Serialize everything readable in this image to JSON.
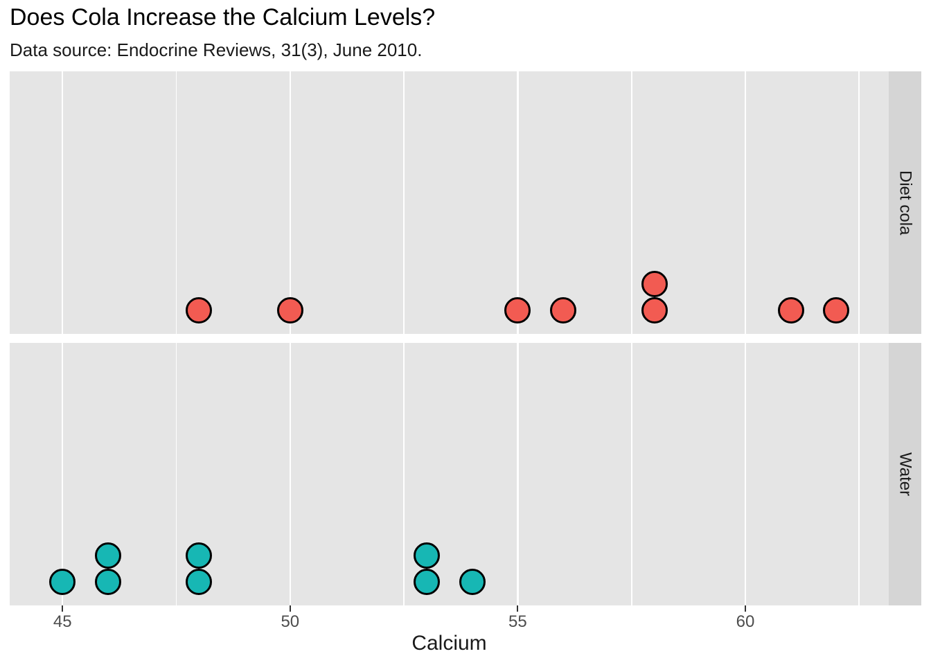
{
  "chart_data": {
    "type": "dotplot",
    "title": "Does Cola Increase the Calcium Levels?",
    "subtitle": "Data source: Endocrine Reviews, 31(3), June 2010.",
    "xlabel": "Calcium",
    "x_ticks": [
      45,
      50,
      55,
      60
    ],
    "x_minor_gridlines": [
      47.5,
      52.5,
      57.5,
      62.5
    ],
    "xlim": [
      43.84,
      63.15
    ],
    "grid": "vertical-only",
    "legend": "none",
    "facets": [
      {
        "label": "Diet cola",
        "dot_color": "#F25B52",
        "values": [
          48,
          50,
          55,
          56,
          58,
          58,
          61,
          62
        ]
      },
      {
        "label": "Water",
        "dot_color": "#17B7B4",
        "values": [
          45,
          46,
          46,
          48,
          48,
          53,
          53,
          54
        ]
      }
    ]
  },
  "colors": {
    "panel_background": "#E5E5E5",
    "strip_background": "#D5D5D5",
    "gridline": "#FFFFFF",
    "dot_outline": "#000000",
    "tick_mark": "#333333",
    "tick_label": "#4D4D4D",
    "text": "#1A1A1A"
  }
}
